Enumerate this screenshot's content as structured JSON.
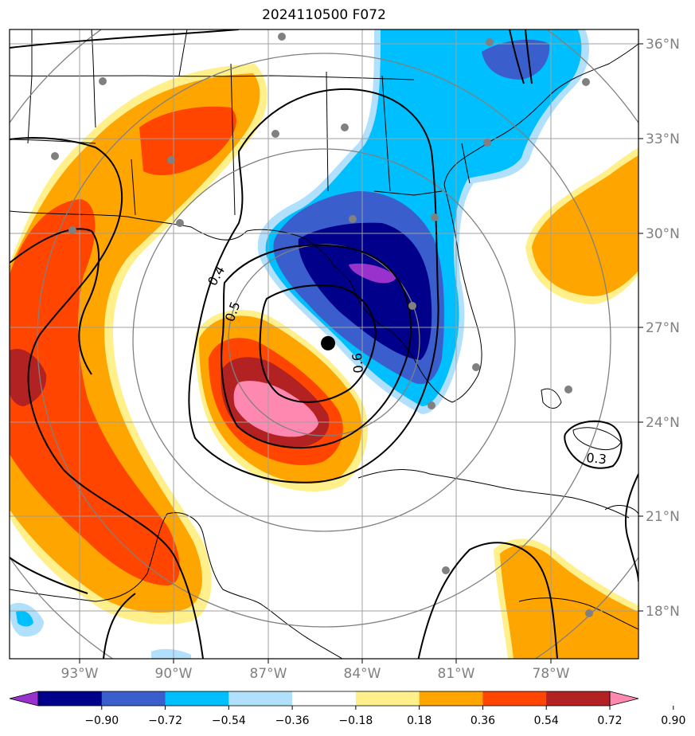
{
  "title": "2024110500 F072",
  "map": {
    "lon_ticks": [
      {
        "lon": -93,
        "label": "93°W"
      },
      {
        "lon": -90,
        "label": "90°W"
      },
      {
        "lon": -87,
        "label": "87°W"
      },
      {
        "lon": -84,
        "label": "84°W"
      },
      {
        "lon": -81,
        "label": "81°W"
      },
      {
        "lon": -78,
        "label": "78°W"
      }
    ],
    "lat_ticks": [
      {
        "lat": 36,
        "label": "36°N"
      },
      {
        "lat": 33,
        "label": "33°N"
      },
      {
        "lat": 30,
        "label": "30°N"
      },
      {
        "lat": 27,
        "label": "27°N"
      },
      {
        "lat": 24,
        "label": "24°N"
      },
      {
        "lat": 21,
        "label": "21°N"
      },
      {
        "lat": 18,
        "label": "18°N"
      }
    ],
    "center_marker": {
      "lon": -85.1,
      "lat": 26.5
    },
    "contour_labels": [
      "0.4",
      "0.5",
      "0.6",
      "0.3"
    ],
    "colors": {
      "purple": "#9932cc",
      "navy": "#00008b",
      "royal": "#3a5fcd",
      "deepsky": "#00bfff",
      "lightsky": "#b0e0fb",
      "white": "#ffffff",
      "lightyellow": "#fff08c",
      "orange": "#ffa500",
      "orangered": "#ff4500",
      "firebrick": "#b22222",
      "pink": "#ff88b0",
      "grid": "#a0a0a0",
      "ring": "#808080"
    }
  },
  "colorbar": {
    "labels": [
      "−0.90",
      "−0.72",
      "−0.54",
      "−0.36",
      "−0.18",
      "0.18",
      "0.36",
      "0.54",
      "0.72",
      "0.90"
    ],
    "colors": [
      "#9932cc",
      "#00008b",
      "#3a5fcd",
      "#00bfff",
      "#b0e0fb",
      "#ffffff",
      "#fff08c",
      "#ffa500",
      "#ff4500",
      "#b22222",
      "#ff88b0"
    ]
  }
}
